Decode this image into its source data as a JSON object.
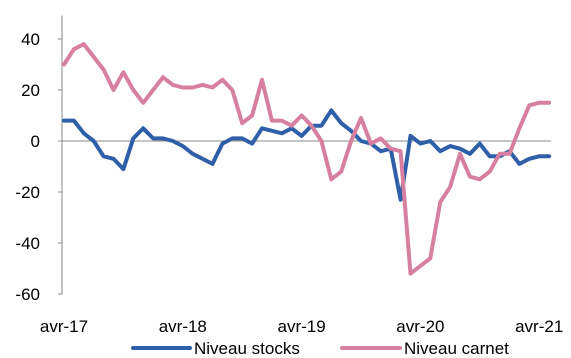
{
  "chart_data": {
    "type": "line",
    "title": "",
    "xlabel": "",
    "ylabel": "",
    "ylim": [
      -60,
      50
    ],
    "yticks": [
      -60,
      -40,
      -20,
      0,
      20,
      40
    ],
    "xticks": [
      "avr-17",
      "avr-18",
      "avr-19",
      "avr-20",
      "avr-21"
    ],
    "grid": false,
    "legend": "bottom",
    "x": [
      "2017-04",
      "2017-05",
      "2017-06",
      "2017-07",
      "2017-08",
      "2017-09",
      "2017-10",
      "2017-11",
      "2017-12",
      "2018-01",
      "2018-02",
      "2018-03",
      "2018-04",
      "2018-05",
      "2018-06",
      "2018-07",
      "2018-08",
      "2018-09",
      "2018-10",
      "2018-11",
      "2018-12",
      "2019-01",
      "2019-02",
      "2019-03",
      "2019-04",
      "2019-05",
      "2019-06",
      "2019-07",
      "2019-08",
      "2019-09",
      "2019-10",
      "2019-11",
      "2019-12",
      "2020-01",
      "2020-02",
      "2020-03",
      "2020-04",
      "2020-05",
      "2020-06",
      "2020-07",
      "2020-08",
      "2020-09",
      "2020-10",
      "2020-11",
      "2020-12",
      "2021-01",
      "2021-02",
      "2021-03",
      "2021-04",
      "2021-05"
    ],
    "series": [
      {
        "name": "Niveau stocks",
        "color": "#2E5FA8",
        "values": [
          8,
          8,
          3,
          0,
          -6,
          -7,
          -11,
          1,
          5,
          1,
          1,
          0,
          -2,
          -5,
          -7,
          -9,
          -1,
          1,
          1,
          -1,
          5,
          4,
          3,
          5,
          2,
          6,
          6,
          12,
          7,
          4,
          0,
          -1,
          -4,
          -3,
          -23,
          2,
          -1,
          0,
          -4,
          -2,
          -3,
          -5,
          -1,
          -6,
          -6,
          -4,
          -9,
          -7,
          -6,
          -6
        ]
      },
      {
        "name": "Niveau carnet",
        "color": "#D77FA1",
        "values": [
          30,
          36,
          38,
          33,
          28,
          20,
          27,
          20,
          15,
          20,
          25,
          22,
          21,
          21,
          22,
          21,
          24,
          20,
          7,
          10,
          24,
          8,
          8,
          6,
          10,
          6,
          0,
          -15,
          -12,
          0,
          9,
          -1,
          1,
          -3,
          -4,
          -52,
          -49,
          -46,
          -24,
          -18,
          -5,
          -14,
          -15,
          -12,
          -5,
          -5,
          5,
          14,
          15,
          15
        ]
      }
    ]
  }
}
